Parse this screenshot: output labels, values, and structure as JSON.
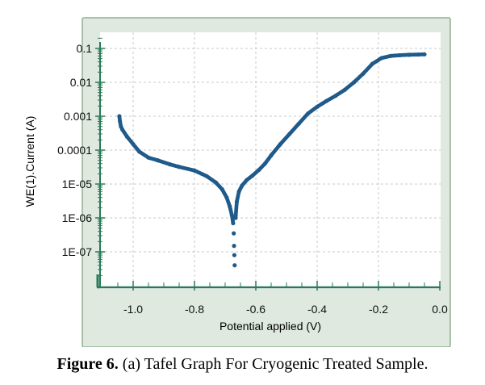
{
  "caption": {
    "label": "Figure 6.",
    "text": "(a) Tafel Graph For Cryogenic Treated Sample."
  },
  "colors": {
    "frame_bg": "#dfe9df",
    "frame_border": "#8fb08f",
    "plot_bg": "#ffffff",
    "axis": "#2a7a5a",
    "grid": "#c8c8c8",
    "series": "#1f5a8a"
  },
  "chart_data": {
    "type": "scatter",
    "title": "",
    "xlabel": "Potential applied (V)",
    "ylabel": "WE(1).Current (A)",
    "x_scale": "linear",
    "y_scale": "log",
    "xlim": [
      -1.1,
      0.0
    ],
    "ylim": [
      1e-08,
      0.2
    ],
    "grid": true,
    "x_ticks": [
      -1.0,
      -0.8,
      -0.6,
      -0.4,
      -0.2,
      0.0
    ],
    "x_tick_labels": [
      "-1.0",
      "-0.8",
      "-0.6",
      "-0.4",
      "-0.2",
      "0.0"
    ],
    "y_ticks": [
      0.1,
      0.01,
      0.001,
      0.0001,
      1e-05,
      1e-06,
      1e-07
    ],
    "y_tick_labels": [
      "0.1",
      "0.01",
      "0.001",
      "0.0001",
      "1E-05",
      "1E-06",
      "1E-07"
    ],
    "series": [
      {
        "x": [
          -1.045,
          -1.043,
          -1.04,
          -1.035,
          -1.02,
          -1.0,
          -0.98,
          -0.95,
          -0.92,
          -0.88,
          -0.85,
          -0.8,
          -0.76,
          -0.73,
          -0.71,
          -0.695,
          -0.685,
          -0.678,
          -0.674,
          -0.672,
          -0.671,
          -0.67,
          -0.669,
          -0.666,
          -0.662,
          -0.655,
          -0.645,
          -0.63,
          -0.61,
          -0.59,
          -0.57,
          -0.55,
          -0.52,
          -0.49,
          -0.46,
          -0.43,
          -0.4,
          -0.37,
          -0.34,
          -0.31,
          -0.28,
          -0.25,
          -0.22,
          -0.19,
          -0.16,
          -0.13,
          -0.1,
          -0.07,
          -0.05
        ],
        "y": [
          0.001,
          0.0007,
          0.0005,
          0.0004,
          0.00025,
          0.00015,
          9e-05,
          6e-05,
          5e-05,
          3.8e-05,
          3.2e-05,
          2.5e-05,
          1.7e-05,
          1.1e-05,
          7e-06,
          4e-06,
          2.2e-06,
          1.2e-06,
          7e-07,
          3.5e-07,
          1.5e-07,
          8e-08,
          4e-08,
          1e-06,
          3e-06,
          6e-06,
          9e-06,
          1.3e-05,
          1.8e-05,
          2.6e-05,
          4e-05,
          7e-05,
          0.00015,
          0.0003,
          0.0006,
          0.0012,
          0.0019,
          0.0028,
          0.004,
          0.006,
          0.01,
          0.018,
          0.035,
          0.052,
          0.06,
          0.063,
          0.065,
          0.066,
          0.067
        ]
      }
    ]
  }
}
